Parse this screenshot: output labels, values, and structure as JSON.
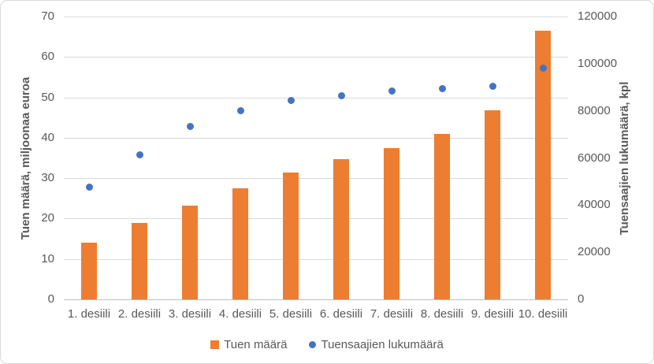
{
  "chart_data": {
    "type": "combo-bar-scatter",
    "categories": [
      "1. desiili",
      "2. desiili",
      "3. desiili",
      "4. desiili",
      "5. desiili",
      "6. desiili",
      "7. desiili",
      "8. desiili",
      "9. desiili",
      "10. desiili"
    ],
    "series": [
      {
        "name": "Tuen määrä",
        "type": "bar",
        "axis": "left",
        "color": "#ed7d31",
        "values": [
          14,
          19,
          23.3,
          27.5,
          31.3,
          34.7,
          37.5,
          41,
          46.7,
          66.5
        ]
      },
      {
        "name": "Tuensaajien lukumäärä",
        "type": "scatter",
        "axis": "right",
        "color": "#4472c4",
        "values": [
          47500,
          61500,
          73500,
          80000,
          84500,
          86500,
          88500,
          89500,
          90500,
          98000
        ]
      }
    ],
    "left_axis": {
      "title": "Tuen määrä, miljoonaa euroa",
      "min": 0,
      "max": 70,
      "tick_step": 10,
      "ticks": [
        0,
        10,
        20,
        30,
        40,
        50,
        60,
        70
      ]
    },
    "right_axis": {
      "title": "Tuensaajien lukumäärä, kpl",
      "min": 0,
      "max": 120000,
      "tick_step": 20000,
      "ticks": [
        0,
        20000,
        40000,
        60000,
        80000,
        100000,
        120000
      ]
    },
    "legend": {
      "position": "bottom",
      "entries": [
        "Tuen määrä",
        "Tuensaajien lukumäärä"
      ]
    },
    "grid": true,
    "colors": {
      "bar": "#ed7d31",
      "point": "#4472c4",
      "gridline": "#d9d9d9",
      "axis_line": "#bfbfbf",
      "text": "#595959",
      "border": "#d9d9d9"
    }
  }
}
